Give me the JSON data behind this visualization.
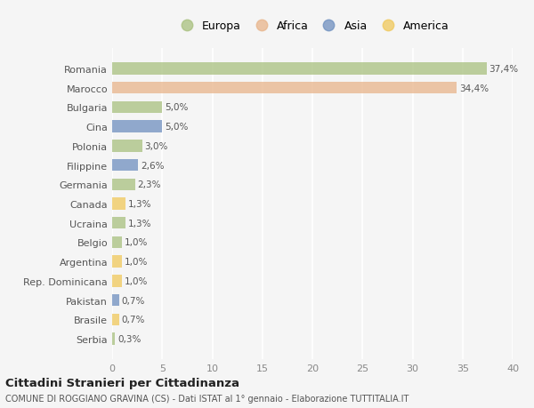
{
  "countries": [
    "Romania",
    "Marocco",
    "Bulgaria",
    "Cina",
    "Polonia",
    "Filippine",
    "Germania",
    "Canada",
    "Ucraina",
    "Belgio",
    "Argentina",
    "Rep. Dominicana",
    "Pakistan",
    "Brasile",
    "Serbia"
  ],
  "values": [
    37.4,
    34.4,
    5.0,
    5.0,
    3.0,
    2.6,
    2.3,
    1.3,
    1.3,
    1.0,
    1.0,
    1.0,
    0.7,
    0.7,
    0.3
  ],
  "labels": [
    "37,4%",
    "34,4%",
    "5,0%",
    "5,0%",
    "3,0%",
    "2,6%",
    "2,3%",
    "1,3%",
    "1,3%",
    "1,0%",
    "1,0%",
    "1,0%",
    "0,7%",
    "0,7%",
    "0,3%"
  ],
  "continents": [
    "Europa",
    "Africa",
    "Europa",
    "Asia",
    "Europa",
    "Asia",
    "Europa",
    "America",
    "Europa",
    "Europa",
    "America",
    "America",
    "Asia",
    "America",
    "Europa"
  ],
  "continent_colors": {
    "Europa": "#a8c07e",
    "Africa": "#e8b48a",
    "Asia": "#6e8fbf",
    "America": "#f0c85a"
  },
  "bg_color": "#f5f5f5",
  "grid_color": "#ffffff",
  "title": "Cittadini Stranieri per Cittadinanza",
  "subtitle": "COMUNE DI ROGGIANO GRAVINA (CS) - Dati ISTAT al 1° gennaio - Elaborazione TUTTITALIA.IT",
  "xlim": [
    0,
    40
  ],
  "xticks": [
    0,
    5,
    10,
    15,
    20,
    25,
    30,
    35,
    40
  ],
  "legend_entries": [
    "Europa",
    "Africa",
    "Asia",
    "America"
  ],
  "bar_height": 0.62,
  "bar_alpha": 0.75
}
